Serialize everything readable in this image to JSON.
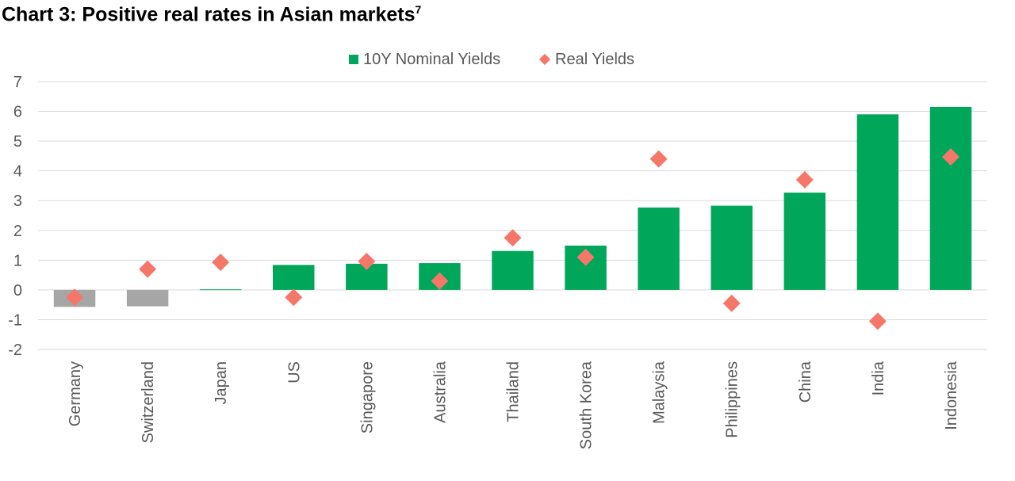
{
  "title": {
    "text": "Chart 3: Positive real rates in Asian markets",
    "superscript": "7"
  },
  "colors": {
    "positive_bar": "#00A65A",
    "negative_bar": "#A6A6A6",
    "real_marker": "#F4776A",
    "grid": "#D9D9D9",
    "text": "#595959"
  },
  "chart_data": {
    "type": "bar",
    "title": "Chart 3: Positive real rates in Asian markets",
    "categories": [
      "Germany",
      "Switzerland",
      "Japan",
      "US",
      "Singapore",
      "Australia",
      "Thailand",
      "South Korea",
      "Malaysia",
      "Philippines",
      "China",
      "India",
      "Indonesia"
    ],
    "series": [
      {
        "name": "10Y Nominal Yields",
        "kind": "bar",
        "values": [
          -0.57,
          -0.55,
          0.02,
          0.84,
          0.88,
          0.9,
          1.31,
          1.49,
          2.77,
          2.83,
          3.27,
          5.9,
          6.15
        ]
      },
      {
        "name": "Real Yields",
        "kind": "marker",
        "marker": "diamond",
        "values": [
          -0.25,
          0.7,
          0.93,
          -0.25,
          0.96,
          0.3,
          1.75,
          1.1,
          4.4,
          -0.45,
          3.7,
          -1.05,
          4.47
        ]
      }
    ],
    "ylim": [
      -2,
      7
    ],
    "yticks": [
      -2,
      -1,
      0,
      1,
      2,
      3,
      4,
      5,
      6,
      7
    ],
    "grid": true,
    "legend_position": "top"
  }
}
